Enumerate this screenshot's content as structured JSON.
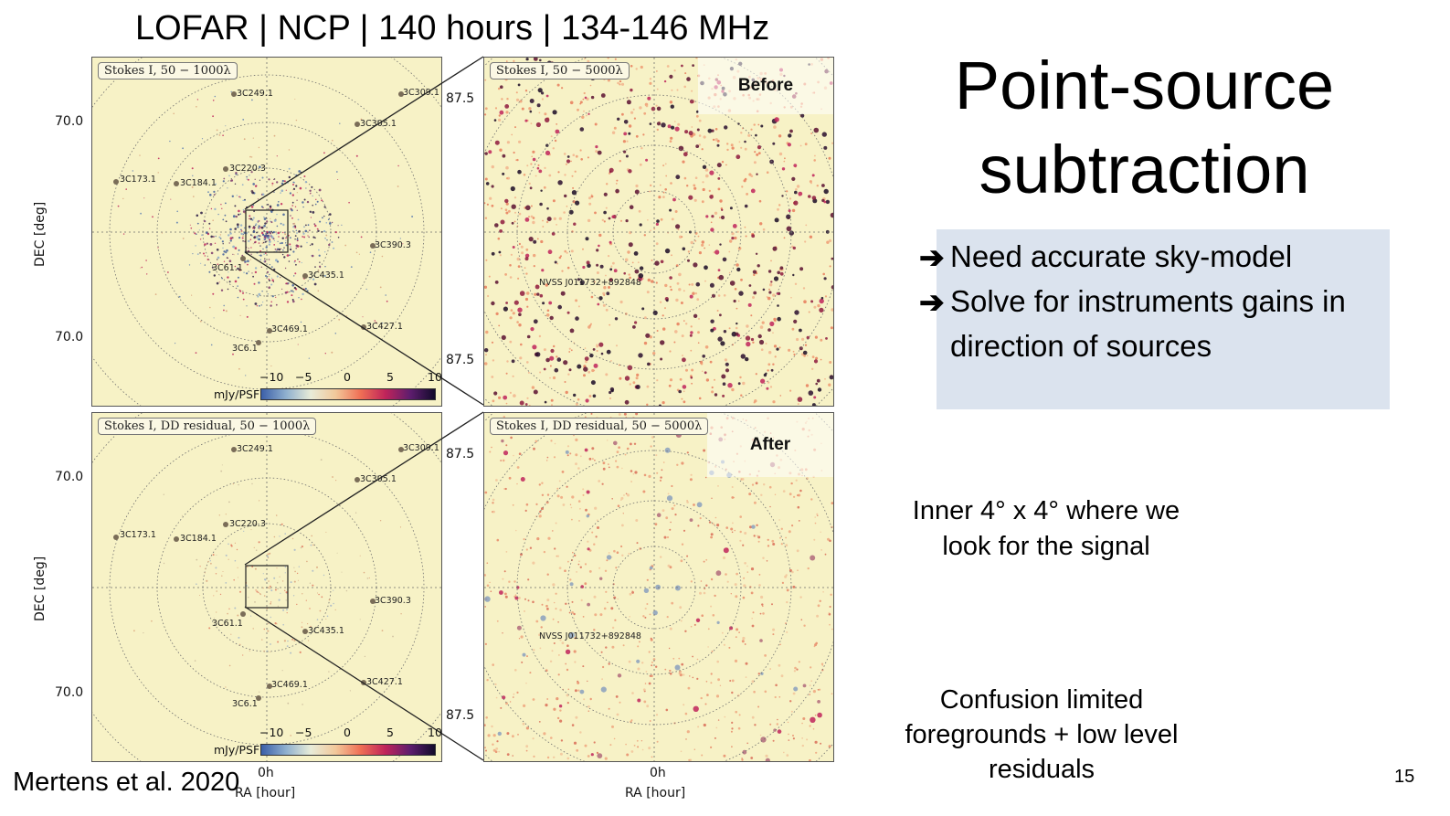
{
  "slide": {
    "header": "LOFAR | NCP | 140 hours | 134-146 MHz",
    "title_line1": "Point-source",
    "title_line2": "subtraction",
    "bullets": [
      "Need accurate sky-model",
      "Solve for instruments gains in",
      "direction of sources"
    ],
    "note_inner_line1": "Inner 4° x 4° where we",
    "note_inner_line2": "look for the signal",
    "note_confusion_line1": "Confusion limited",
    "note_confusion_line2": "foregrounds + low level",
    "note_confusion_line3": "residuals",
    "citation": "Mertens et al. 2020",
    "page_number": "15"
  },
  "figure": {
    "top_left_label": "Stokes I, 50 − 1000λ",
    "top_right_label": "Stokes I, 50 − 5000λ",
    "bottom_left_label": "Stokes I, DD residual, 50 − 1000λ",
    "bottom_right_label": "Stokes I, DD residual, 50 − 5000λ",
    "tag_before": "Before",
    "tag_after": "After",
    "dec_label": "DEC [deg]",
    "ra_label": "RA [hour]",
    "dec_tick_a": "70.0",
    "dec_tick_b": "70.0",
    "dec_tick_c": "87.5",
    "dec_tick_d": "87.5",
    "ra_tick": "0h",
    "nvss_source": "NVSS J011732+892848",
    "colorbar_unit": "mJy/PSF",
    "colorbar_ticks": [
      "−10",
      "−5",
      "0",
      "5",
      "10"
    ],
    "sources": [
      "3C249.1",
      "3C309.1",
      "3C305.1",
      "3C220.3",
      "3C173.1",
      "3C184.1",
      "3C390.3",
      "3C61.1",
      "3C435.1",
      "3C427.1",
      "3C469.1",
      "3C6.1"
    ]
  }
}
